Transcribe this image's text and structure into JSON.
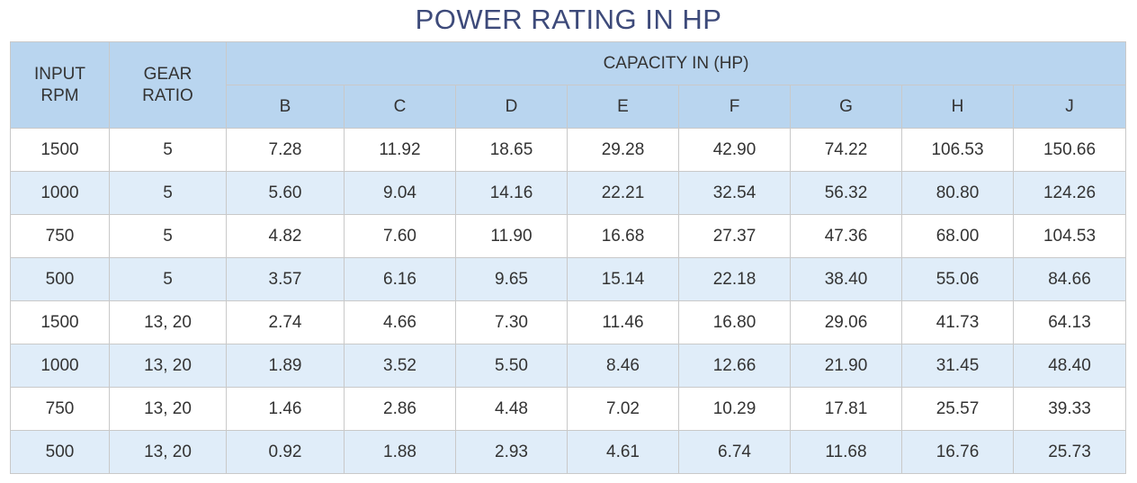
{
  "title": "POWER RATING IN HP",
  "table": {
    "header": {
      "input_rpm": [
        "INPUT",
        "RPM"
      ],
      "gear_ratio": [
        "GEAR",
        "RATIO"
      ],
      "capacity": "CAPACITY IN (HP)",
      "capacity_columns": [
        "B",
        "C",
        "D",
        "E",
        "F",
        "G",
        "H",
        "J"
      ]
    },
    "rows": [
      {
        "rpm": "1500",
        "ratio": "5",
        "values": [
          "7.28",
          "11.92",
          "18.65",
          "29.28",
          "42.90",
          "74.22",
          "106.53",
          "150.66"
        ]
      },
      {
        "rpm": "1000",
        "ratio": "5",
        "values": [
          "5.60",
          "9.04",
          "14.16",
          "22.21",
          "32.54",
          "56.32",
          "80.80",
          "124.26"
        ]
      },
      {
        "rpm": "750",
        "ratio": "5",
        "values": [
          "4.82",
          "7.60",
          "11.90",
          "16.68",
          "27.37",
          "47.36",
          "68.00",
          "104.53"
        ]
      },
      {
        "rpm": "500",
        "ratio": "5",
        "values": [
          "3.57",
          "6.16",
          "9.65",
          "15.14",
          "22.18",
          "38.40",
          "55.06",
          "84.66"
        ]
      },
      {
        "rpm": "1500",
        "ratio": "13, 20",
        "values": [
          "2.74",
          "4.66",
          "7.30",
          "11.46",
          "16.80",
          "29.06",
          "41.73",
          "64.13"
        ]
      },
      {
        "rpm": "1000",
        "ratio": "13, 20",
        "values": [
          "1.89",
          "3.52",
          "5.50",
          "8.46",
          "12.66",
          "21.90",
          "31.45",
          "48.40"
        ]
      },
      {
        "rpm": "750",
        "ratio": "13, 20",
        "values": [
          "1.46",
          "2.86",
          "4.48",
          "7.02",
          "10.29",
          "17.81",
          "25.57",
          "39.33"
        ]
      },
      {
        "rpm": "500",
        "ratio": "13, 20",
        "values": [
          "0.92",
          "1.88",
          "2.93",
          "4.61",
          "6.74",
          "11.68",
          "16.76",
          "25.73"
        ]
      }
    ]
  },
  "colors": {
    "title": "#3d4a7a",
    "header_bg": "#b9d5ef",
    "row_alt_bg": "#e0edf9",
    "border": "#c9c9c9"
  }
}
